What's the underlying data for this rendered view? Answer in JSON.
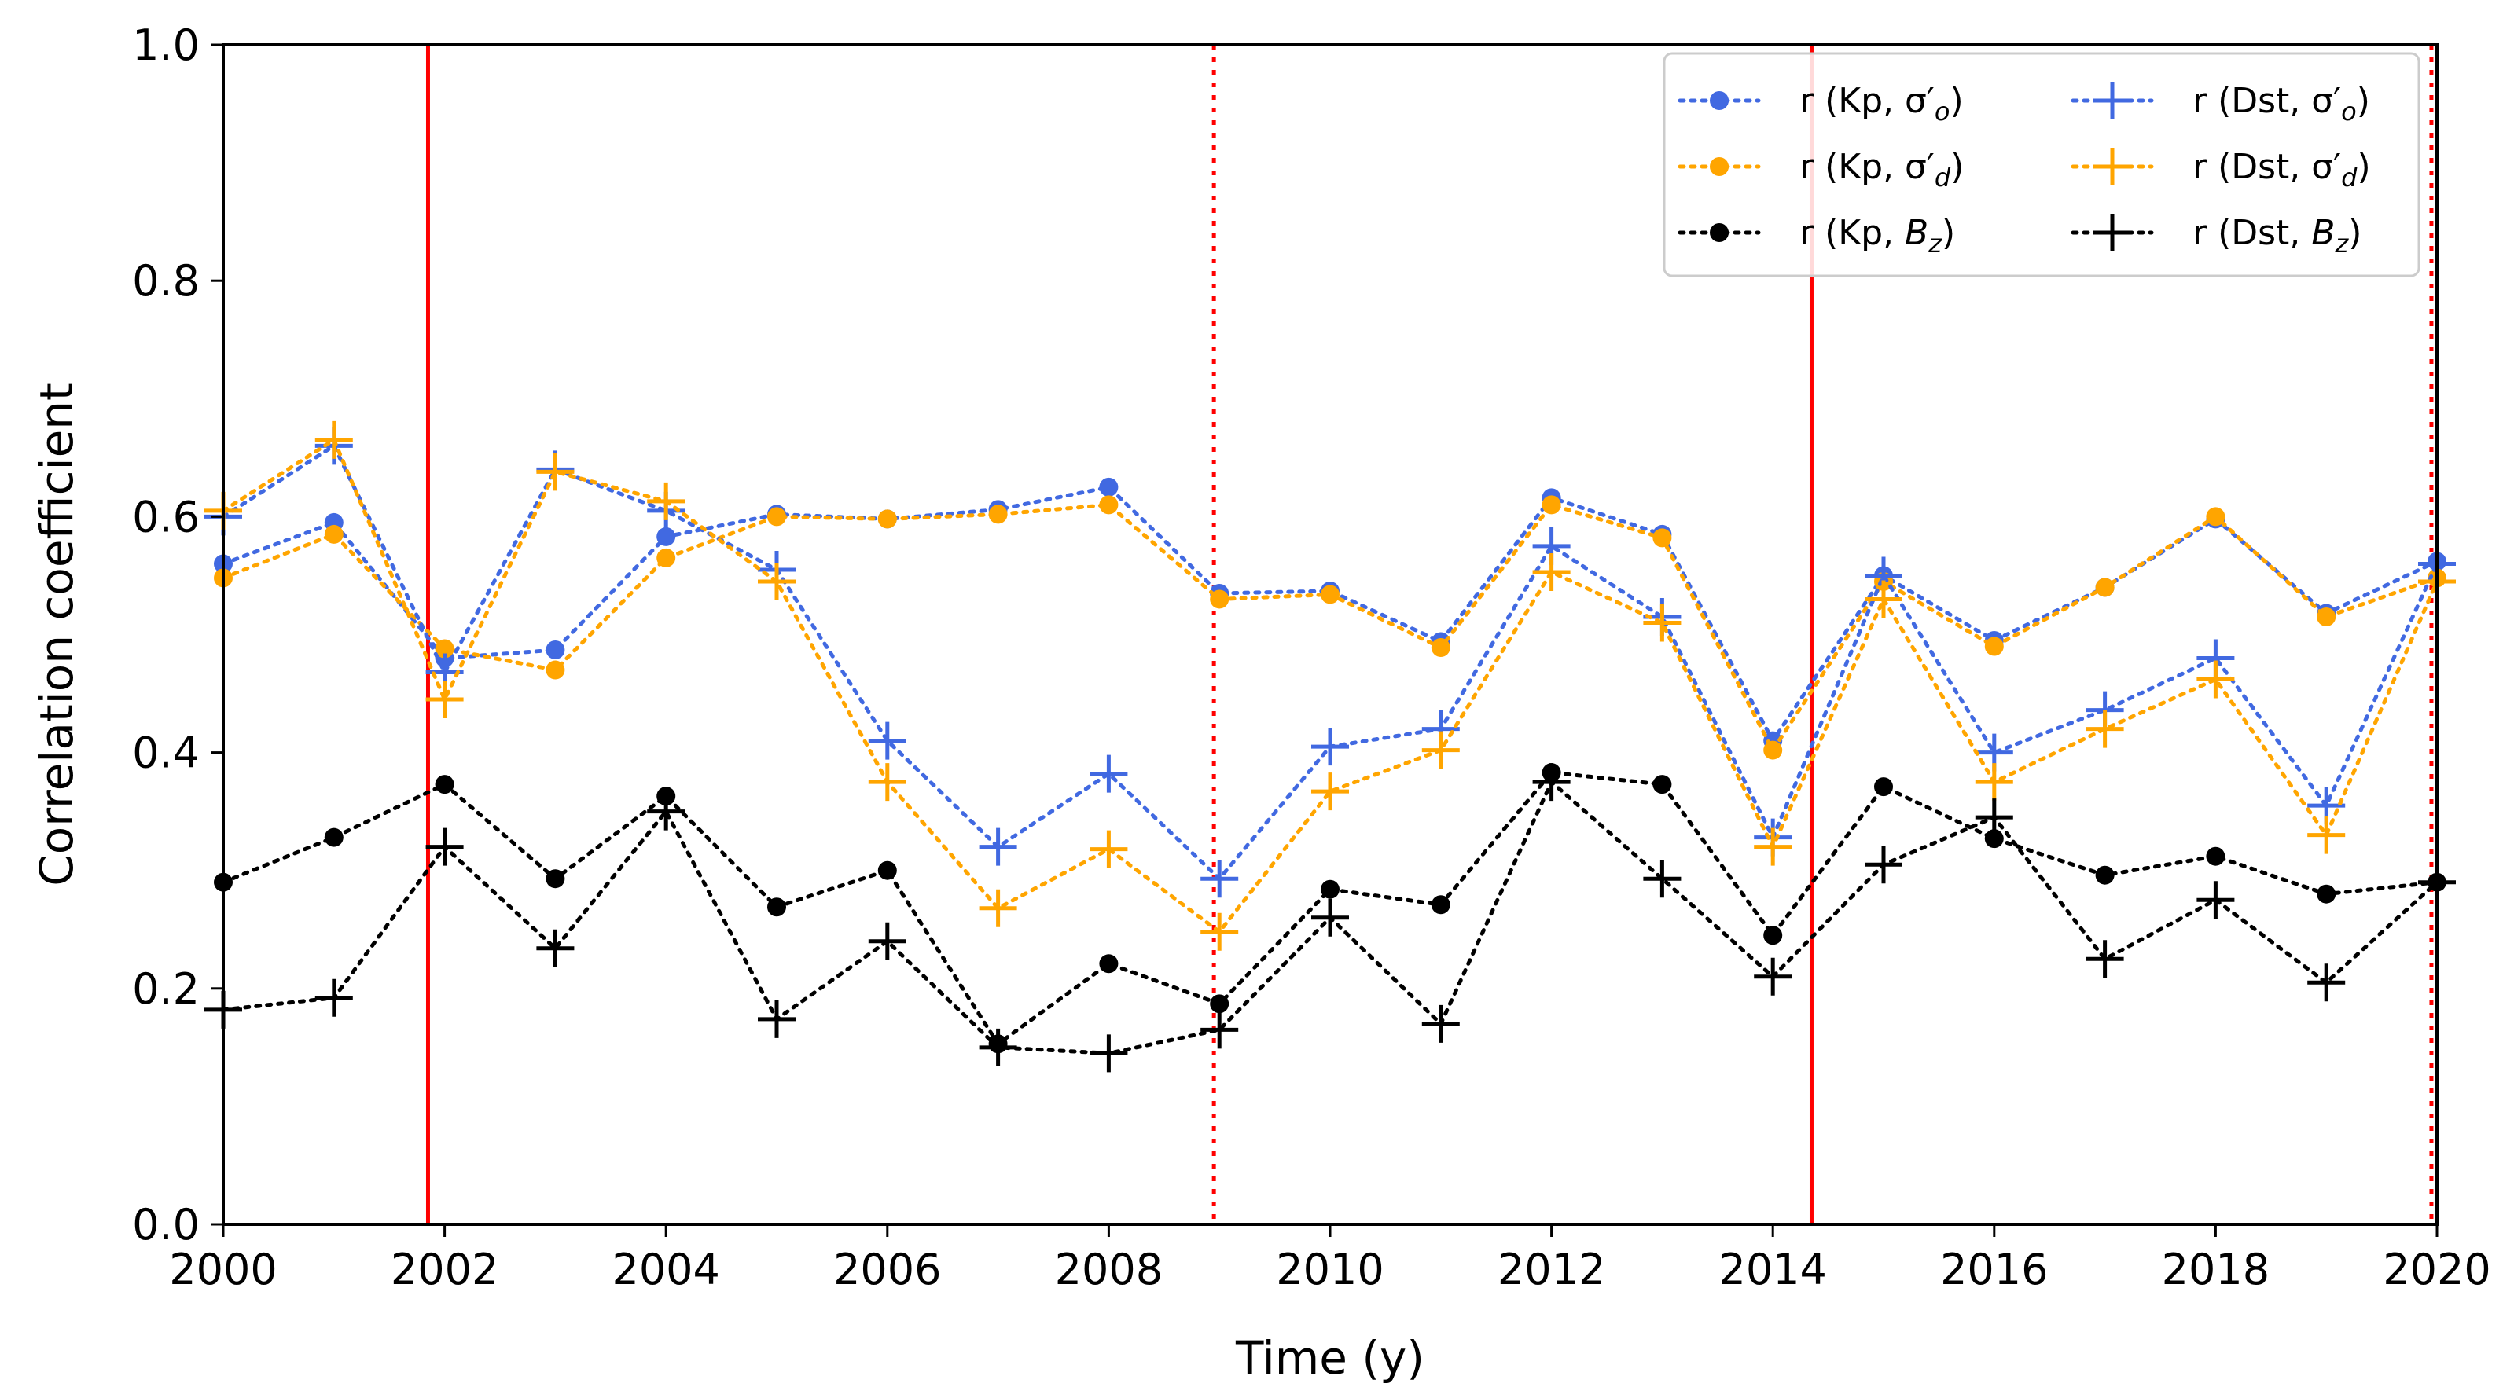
{
  "chart_data": {
    "type": "line",
    "title": "",
    "xlabel": "Time (y)",
    "ylabel": "Correlation coefficient",
    "xlim": [
      2000,
      2020
    ],
    "ylim": [
      0.0,
      1.0
    ],
    "xticks": [
      2000,
      2002,
      2004,
      2006,
      2008,
      2010,
      2012,
      2014,
      2016,
      2018,
      2020
    ],
    "yticks": [
      0.0,
      0.2,
      0.4,
      0.6,
      0.8,
      1.0
    ],
    "xtick_labels": [
      "2000",
      "2002",
      "2004",
      "2006",
      "2008",
      "2010",
      "2012",
      "2014",
      "2016",
      "2018",
      "2020"
    ],
    "ytick_labels": [
      "0.0",
      "0.2",
      "0.4",
      "0.6",
      "0.8",
      "1.0"
    ],
    "x": [
      2000,
      2001,
      2002,
      2003,
      2004,
      2005,
      2006,
      2007,
      2008,
      2009,
      2010,
      2011,
      2012,
      2013,
      2014,
      2015,
      2016,
      2017,
      2018,
      2019,
      2020
    ],
    "legend_position": "top-right",
    "series": [
      {
        "name": "r (Kp, σ′o)",
        "label_main": "r (Kp, σ′",
        "label_sub": "o",
        "label_end": ")",
        "color": "#4169e1",
        "marker": "circle",
        "values": [
          0.56,
          0.595,
          0.48,
          0.487,
          0.583,
          0.602,
          0.598,
          0.606,
          0.625,
          0.535,
          0.537,
          0.494,
          0.616,
          0.585,
          0.41,
          0.55,
          0.495,
          0.54,
          0.598,
          0.518,
          0.562
        ]
      },
      {
        "name": "r (Kp, σ′d)",
        "label_main": "r (Kp, σ′",
        "label_sub": "d",
        "label_end": ")",
        "color": "#ffa500",
        "marker": "circle",
        "values": [
          0.548,
          0.585,
          0.488,
          0.47,
          0.565,
          0.6,
          0.598,
          0.602,
          0.61,
          0.53,
          0.534,
          0.489,
          0.61,
          0.582,
          0.402,
          0.545,
          0.49,
          0.54,
          0.6,
          0.515,
          0.548
        ]
      },
      {
        "name": "r (Kp, Bz)",
        "label_main": "r (Kp, ",
        "label_ital": "B",
        "label_sub": "z",
        "label_end": ")",
        "color": "#000000",
        "marker": "circle",
        "values": [
          0.29,
          0.328,
          0.373,
          0.293,
          0.363,
          0.269,
          0.3,
          0.153,
          0.221,
          0.187,
          0.284,
          0.271,
          0.383,
          0.373,
          0.245,
          0.371,
          0.327,
          0.296,
          0.312,
          0.28,
          0.29
        ]
      },
      {
        "name": "r (Dst, σ′o)",
        "label_main": "r (Dst, σ′",
        "label_sub": "o",
        "label_end": ")",
        "color": "#4169e1",
        "marker": "plus",
        "values": [
          0.6,
          0.66,
          0.468,
          0.64,
          0.605,
          0.555,
          0.41,
          0.32,
          0.382,
          0.293,
          0.405,
          0.42,
          0.575,
          0.515,
          0.328,
          0.55,
          0.4,
          0.436,
          0.48,
          0.355,
          0.56
        ]
      },
      {
        "name": "r (Dst, σ′d)",
        "label_main": "r (Dst, σ′",
        "label_sub": "d",
        "label_end": ")",
        "color": "#ffa500",
        "marker": "plus",
        "values": [
          0.605,
          0.665,
          0.445,
          0.638,
          0.613,
          0.545,
          0.375,
          0.268,
          0.318,
          0.248,
          0.367,
          0.402,
          0.553,
          0.51,
          0.32,
          0.53,
          0.375,
          0.42,
          0.462,
          0.33,
          0.545
        ]
      },
      {
        "name": "r (Dst, Bz)",
        "label_main": "r (Dst, ",
        "label_ital": "B",
        "label_sub": "z",
        "label_end": ")",
        "color": "#000000",
        "marker": "plus",
        "values": [
          0.182,
          0.192,
          0.32,
          0.234,
          0.35,
          0.174,
          0.24,
          0.15,
          0.145,
          0.165,
          0.26,
          0.17,
          0.375,
          0.293,
          0.21,
          0.305,
          0.345,
          0.225,
          0.275,
          0.205,
          0.29
        ]
      }
    ],
    "vertical_lines": [
      {
        "x": 2001.85,
        "style": "solid",
        "color": "#ff0000"
      },
      {
        "x": 2008.95,
        "style": "dotted",
        "color": "#ff0000"
      },
      {
        "x": 2014.35,
        "style": "solid",
        "color": "#ff0000"
      },
      {
        "x": 2019.95,
        "style": "dotted",
        "color": "#ff0000"
      }
    ]
  }
}
